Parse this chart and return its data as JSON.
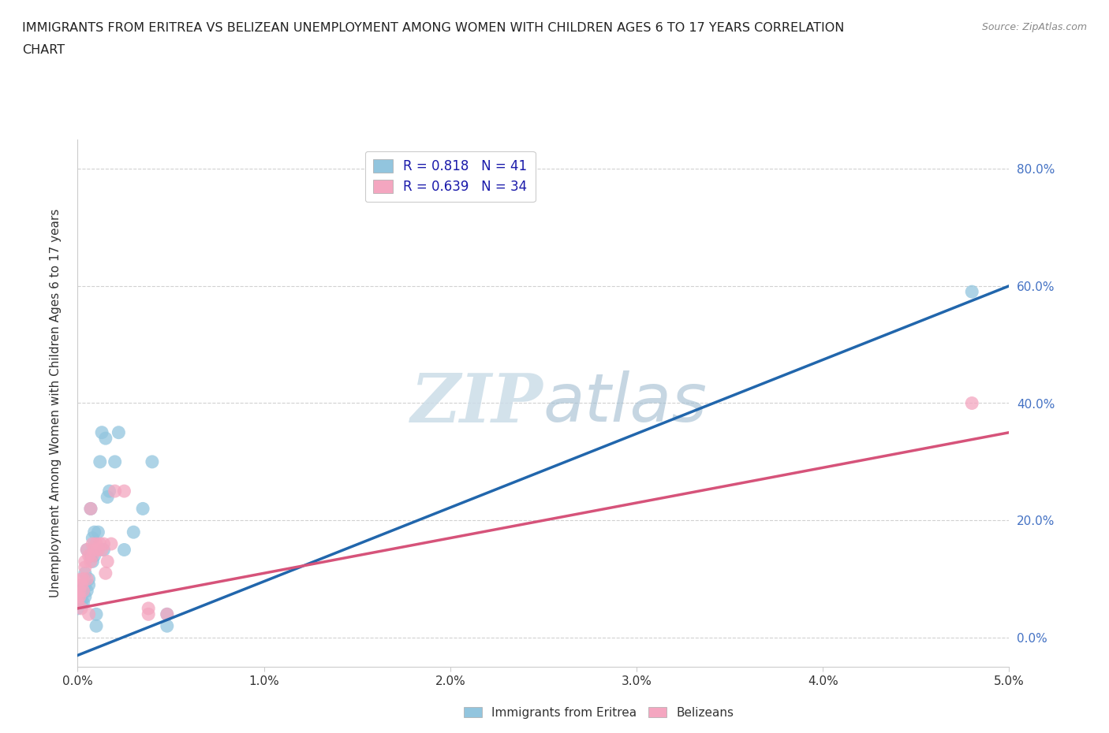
{
  "title_line1": "IMMIGRANTS FROM ERITREA VS BELIZEAN UNEMPLOYMENT AMONG WOMEN WITH CHILDREN AGES 6 TO 17 YEARS CORRELATION",
  "title_line2": "CHART",
  "source": "Source: ZipAtlas.com",
  "ylabel": "Unemployment Among Women with Children Ages 6 to 17 years",
  "legend_eritrea": "Immigrants from Eritrea",
  "legend_belize": "Belizeans",
  "R_eritrea": 0.818,
  "N_eritrea": 41,
  "R_belize": 0.639,
  "N_belize": 34,
  "color_eritrea": "#92c5de",
  "color_belize": "#f4a6c0",
  "line_color_eritrea": "#2166ac",
  "line_color_belize": "#d6537a",
  "watermark_color": "#ccdde8",
  "xlim": [
    0.0,
    0.05
  ],
  "ylim": [
    -0.05,
    0.85
  ],
  "xtick_vals": [
    0.0,
    0.01,
    0.02,
    0.03,
    0.04,
    0.05
  ],
  "ytick_vals": [
    0.0,
    0.2,
    0.4,
    0.6,
    0.8
  ],
  "yticklabel_color": "#4472c4",
  "scatter_eritrea_x": [
    0.0,
    0.0,
    0.0,
    0.0001,
    0.0001,
    0.0002,
    0.0002,
    0.0002,
    0.0003,
    0.0003,
    0.0004,
    0.0004,
    0.0004,
    0.0005,
    0.0005,
    0.0006,
    0.0006,
    0.0007,
    0.0007,
    0.0008,
    0.0008,
    0.0009,
    0.0009,
    0.001,
    0.001,
    0.0011,
    0.0012,
    0.0013,
    0.0014,
    0.0015,
    0.0016,
    0.0017,
    0.002,
    0.0022,
    0.0025,
    0.003,
    0.0035,
    0.004,
    0.0048,
    0.0048,
    0.048
  ],
  "scatter_eritrea_y": [
    0.05,
    0.06,
    0.07,
    0.07,
    0.08,
    0.06,
    0.07,
    0.08,
    0.06,
    0.08,
    0.07,
    0.09,
    0.11,
    0.08,
    0.15,
    0.09,
    0.1,
    0.14,
    0.22,
    0.13,
    0.17,
    0.14,
    0.18,
    0.02,
    0.04,
    0.18,
    0.3,
    0.35,
    0.15,
    0.34,
    0.24,
    0.25,
    0.3,
    0.35,
    0.15,
    0.18,
    0.22,
    0.3,
    0.02,
    0.04,
    0.59
  ],
  "scatter_belize_x": [
    0.0,
    0.0,
    0.0001,
    0.0001,
    0.0002,
    0.0002,
    0.0002,
    0.0003,
    0.0003,
    0.0004,
    0.0004,
    0.0005,
    0.0005,
    0.0006,
    0.0006,
    0.0007,
    0.0007,
    0.0008,
    0.0008,
    0.0009,
    0.001,
    0.0011,
    0.0012,
    0.0013,
    0.0014,
    0.0015,
    0.0016,
    0.0018,
    0.002,
    0.0025,
    0.0038,
    0.0038,
    0.0048,
    0.048
  ],
  "scatter_belize_y": [
    0.06,
    0.07,
    0.07,
    0.08,
    0.05,
    0.09,
    0.1,
    0.08,
    0.1,
    0.12,
    0.13,
    0.1,
    0.15,
    0.04,
    0.14,
    0.13,
    0.22,
    0.14,
    0.16,
    0.15,
    0.16,
    0.15,
    0.16,
    0.15,
    0.16,
    0.11,
    0.13,
    0.16,
    0.25,
    0.25,
    0.05,
    0.04,
    0.04,
    0.4
  ],
  "line_eritrea_x0": 0.0,
  "line_eritrea_y0": -0.03,
  "line_eritrea_x1": 0.05,
  "line_eritrea_y1": 0.6,
  "line_belize_x0": 0.0,
  "line_belize_y0": 0.05,
  "line_belize_x1": 0.05,
  "line_belize_y1": 0.35
}
